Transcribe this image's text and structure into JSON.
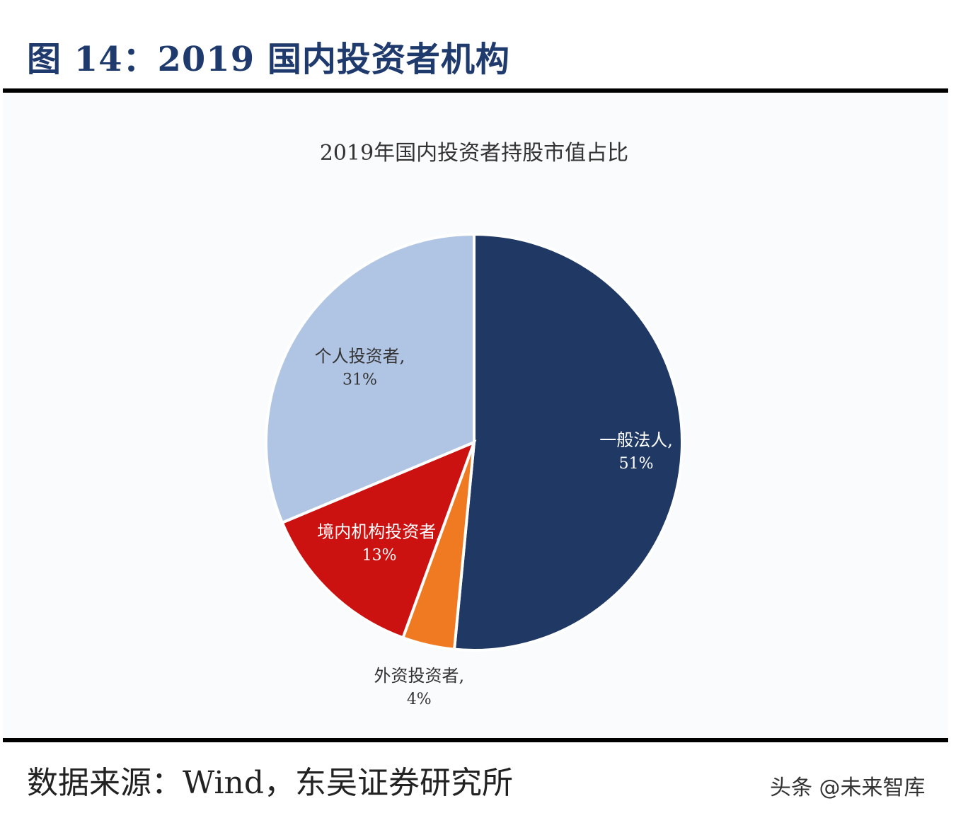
{
  "figure_title": "图 14：2019 国内投资者机构",
  "source": "数据来源：Wind，东吴证券研究所",
  "watermark": "头条 @未来智库",
  "chart_data": {
    "type": "pie",
    "title": "2019年国内投资者持股市值占比",
    "start_angle_deg": 0,
    "direction": "clockwise",
    "slices": [
      {
        "label": "一般法人,",
        "value": 51,
        "value_text": "51%",
        "color": "#1f3864",
        "label_color": "#ffffff"
      },
      {
        "label": "外资投资者,",
        "value": 4,
        "value_text": "4%",
        "color": "#f07a22",
        "label_color": "#333333"
      },
      {
        "label": "境内机构投资者,",
        "value": 13,
        "value_text": "13%",
        "color": "#cc1111",
        "label_color": "#ffffff"
      },
      {
        "label": "个人投资者,",
        "value": 31,
        "value_text": "31%",
        "color": "#b0c4e4",
        "label_color": "#333333"
      }
    ]
  }
}
